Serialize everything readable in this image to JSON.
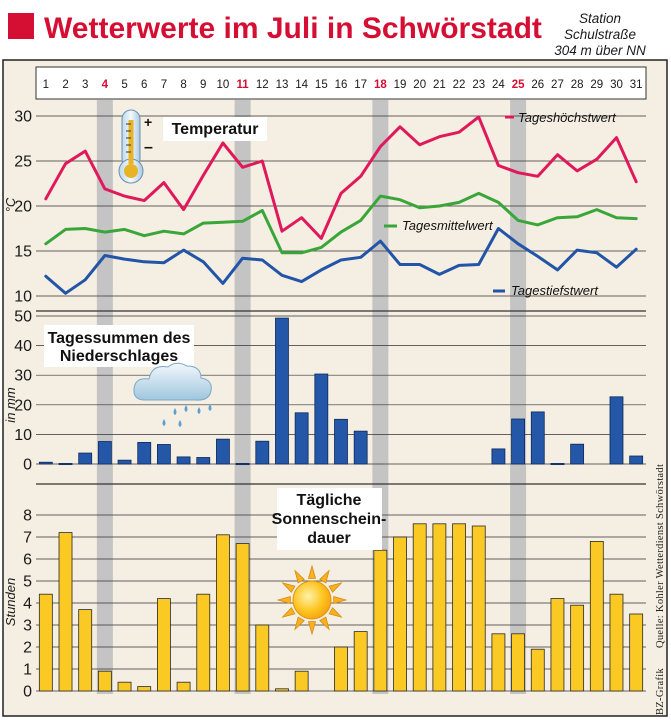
{
  "title": "Wetterwerte im Juli in Schwörstadt",
  "station": {
    "line1": "Station",
    "line2": "Schulstraße",
    "line3": "304 m über NN"
  },
  "credit_source": "Quelle: Kohler Wetterdienst Schwörstadt",
  "credit_graphic": "BZ-Grafik",
  "colors": {
    "title_red": "#d50f34",
    "max_line": "#e0195c",
    "mean_line": "#3aa63a",
    "min_line": "#2255a8",
    "rain_bar": "#2557a8",
    "sun_bar": "#fbc923",
    "sunday_band": "#c4c4c4",
    "panel_bg": "#f5eee2"
  },
  "chart_data": {
    "days": [
      "1",
      "2",
      "3",
      "4",
      "5",
      "6",
      "7",
      "8",
      "9",
      "10",
      "11",
      "12",
      "13",
      "14",
      "15",
      "16",
      "17",
      "18",
      "19",
      "20",
      "21",
      "22",
      "23",
      "24",
      "25",
      "26",
      "27",
      "28",
      "29",
      "30",
      "31"
    ],
    "sundays": [
      "4",
      "11",
      "18",
      "25"
    ],
    "temperature": {
      "type": "line",
      "title": "Temperatur",
      "ylabel": "°C",
      "ylim": [
        10,
        30
      ],
      "yticks": [
        "10",
        "15",
        "20",
        "25",
        "30"
      ],
      "series": [
        {
          "name": "Tageshöchstwert",
          "color": "#e0195c",
          "values": [
            20.8,
            24.7,
            26.1,
            21.9,
            21.1,
            20.6,
            22.6,
            19.6,
            23.4,
            27.0,
            24.3,
            25.0,
            17.2,
            18.7,
            16.4,
            21.4,
            23.3,
            26.6,
            28.8,
            26.8,
            27.7,
            28.2,
            29.9,
            24.5,
            23.7,
            23.3,
            25.7,
            23.9,
            25.2,
            27.6,
            22.7
          ]
        },
        {
          "name": "Tagesmittelwert",
          "color": "#3aa63a",
          "values": [
            15.8,
            17.4,
            17.5,
            17.1,
            17.4,
            16.7,
            17.2,
            16.9,
            18.1,
            18.2,
            18.3,
            19.5,
            14.8,
            14.8,
            15.4,
            17.1,
            18.4,
            21.1,
            20.7,
            19.8,
            20.0,
            20.4,
            21.4,
            20.4,
            18.4,
            17.9,
            18.7,
            18.8,
            19.6,
            18.7,
            18.6
          ]
        },
        {
          "name": "Tagestiefstwert",
          "color": "#2255a8",
          "values": [
            12.2,
            10.3,
            11.8,
            14.5,
            14.1,
            13.8,
            13.7,
            15.1,
            13.8,
            11.4,
            14.2,
            14.0,
            12.3,
            11.6,
            12.9,
            14.0,
            14.3,
            16.1,
            13.5,
            13.5,
            12.4,
            13.4,
            13.5,
            17.5,
            15.8,
            14.4,
            12.9,
            15.1,
            14.8,
            13.2,
            15.2
          ]
        }
      ]
    },
    "precipitation": {
      "type": "bar",
      "title_line1": "Tagessummen des",
      "title_line2": "Niederschlages",
      "ylabel": "in mm",
      "ylim": [
        0,
        50
      ],
      "yticks": [
        "0",
        "10",
        "20",
        "30",
        "40",
        "50"
      ],
      "values": [
        0.6,
        0.2,
        3.7,
        7.6,
        1.3,
        7.3,
        6.6,
        2.4,
        2.2,
        8.4,
        0.2,
        7.7,
        49.3,
        17.3,
        30.4,
        15.1,
        11.1,
        0,
        0,
        0,
        0,
        0,
        0,
        5.1,
        15.2,
        17.6,
        0.2,
        6.7,
        0,
        22.7,
        2.7
      ]
    },
    "sunshine": {
      "type": "bar",
      "title_line1": "Tägliche",
      "title_line2": "Sonnenschein-",
      "title_line3": "dauer",
      "ylabel": "Stunden",
      "ylim": [
        0,
        8
      ],
      "yticks": [
        "0",
        "1",
        "2",
        "3",
        "4",
        "5",
        "6",
        "7",
        "8"
      ],
      "values": [
        4.4,
        7.2,
        3.7,
        0.9,
        0.4,
        0.2,
        4.2,
        0.4,
        4.4,
        7.1,
        6.7,
        3.0,
        0.1,
        0.9,
        0,
        2.0,
        2.7,
        6.4,
        7.0,
        7.6,
        7.6,
        7.6,
        7.5,
        2.6,
        2.6,
        1.9,
        4.2,
        3.9,
        6.8,
        4.4,
        3.5
      ]
    }
  }
}
